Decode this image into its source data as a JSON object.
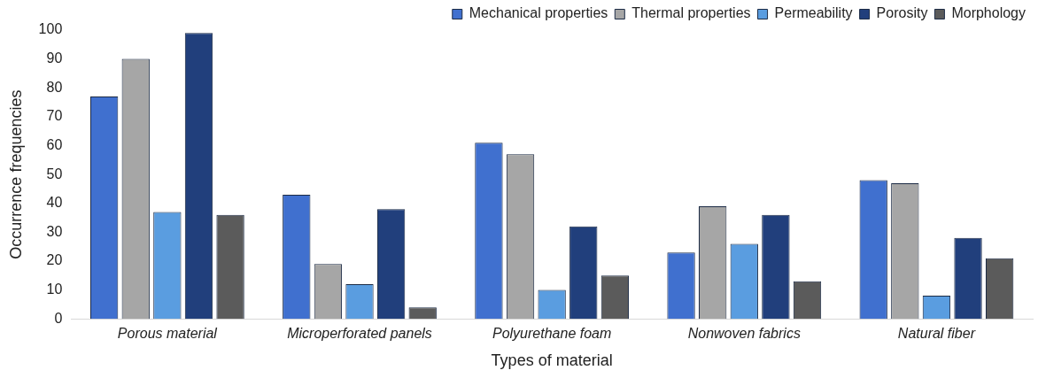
{
  "chart_data": {
    "type": "bar",
    "xlabel": "Types of material",
    "ylabel": "Occurrence frequencies",
    "categories": [
      "Porous material",
      "Microperforated panels",
      "Polyurethane foam",
      "Nonwoven fabrics",
      "Natural fiber"
    ],
    "series": [
      {
        "name": "Mechanical properties",
        "color": "#4070cf",
        "values": [
          77,
          43,
          61,
          23,
          48
        ]
      },
      {
        "name": "Thermal properties",
        "color": "#a6a6a6",
        "values": [
          90,
          19,
          57,
          39,
          47
        ]
      },
      {
        "name": "Permeability",
        "color": "#5a9de0",
        "values": [
          37,
          12,
          10,
          26,
          8
        ]
      },
      {
        "name": "Porosity",
        "color": "#213f7c",
        "values": [
          99,
          38,
          32,
          36,
          28
        ]
      },
      {
        "name": "Morphology",
        "color": "#5b5b5b",
        "values": [
          36,
          4,
          15,
          13,
          21
        ]
      }
    ],
    "ylim": [
      0,
      100
    ],
    "yticks": [
      0,
      10,
      20,
      30,
      40,
      50,
      60,
      70,
      80,
      90,
      100
    ],
    "grid": false,
    "legend": "top right"
  }
}
